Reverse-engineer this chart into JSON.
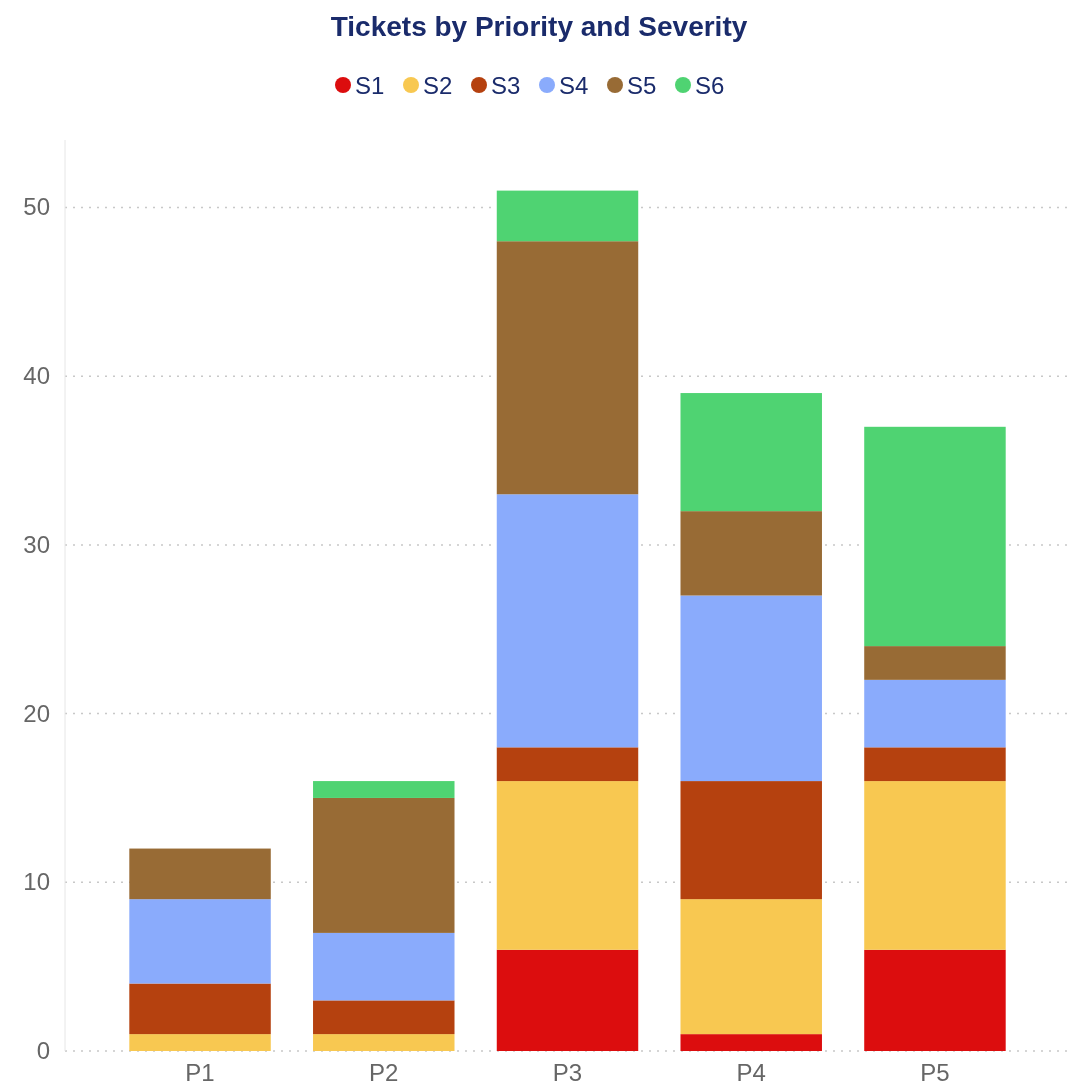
{
  "chart_data": {
    "type": "bar",
    "title": "Tickets by Priority and Severity",
    "categories": [
      "P1",
      "P2",
      "P3",
      "P4",
      "P5"
    ],
    "stacked": true,
    "legend": "top",
    "grid": "y",
    "ylim": [
      0,
      54
    ],
    "yticks": [
      0,
      10,
      20,
      30,
      40,
      50
    ],
    "series": [
      {
        "name": "S1",
        "color": "#dc0d0e",
        "values": [
          0,
          0,
          6,
          1,
          6
        ]
      },
      {
        "name": "S2",
        "color": "#f8c851",
        "values": [
          1,
          1,
          10,
          8,
          10
        ]
      },
      {
        "name": "S3",
        "color": "#b5410f",
        "values": [
          3,
          2,
          2,
          7,
          2
        ]
      },
      {
        "name": "S4",
        "color": "#8aabfc",
        "values": [
          5,
          4,
          15,
          11,
          4
        ]
      },
      {
        "name": "S5",
        "color": "#986b35",
        "values": [
          3,
          8,
          15,
          5,
          2
        ]
      },
      {
        "name": "S6",
        "color": "#4fd372",
        "values": [
          0,
          1,
          3,
          7,
          13
        ]
      }
    ]
  }
}
